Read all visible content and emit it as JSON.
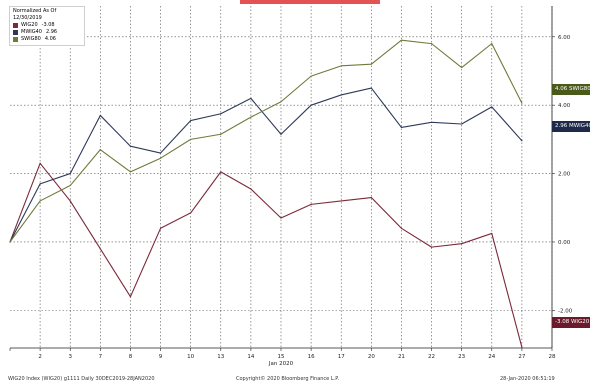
{
  "legend": {
    "title": "Normalized As Of 12/30/2019",
    "items": [
      {
        "name": "WIG20",
        "value": "-3.08",
        "color": "#7a2a3a"
      },
      {
        "name": "MWIG40",
        "value": "2.96",
        "color": "#2e3a58"
      },
      {
        "name": "SWIG80",
        "value": "4.06",
        "color": "#6e7a3a"
      }
    ]
  },
  "tags": {
    "swig80": "4.06  SWIG80",
    "mwig40": "2.96  MWIG40",
    "wig20": "-3.08 WIG20"
  },
  "footer": {
    "left": "WIG20 Index (WIG20) g1111  Daily 30DEC2019-28JAN2020",
    "center": "Copyright© 2020 Bloomberg Finance L.P.",
    "right": "28-Jan-2020 06:51:19"
  },
  "colors": {
    "wig20": "#7a2a3a",
    "mwig40": "#2e3a58",
    "swig80": "#6e7a3a",
    "grid": "#555555",
    "tag_swig80": "#4a5a1a",
    "tag_mwig40": "#1f2a4a",
    "tag_wig20": "#6a1a2a"
  },
  "chart_data": {
    "type": "line",
    "x": [
      "",
      "2",
      "3",
      "7",
      "8",
      "9",
      "10",
      "13",
      "14",
      "15",
      "16",
      "17",
      "20",
      "21",
      "22",
      "23",
      "24",
      "27",
      "28"
    ],
    "x_sublabel": {
      "index": 9,
      "text": "Jan 2020"
    },
    "ylim": [
      -3.1,
      6.9
    ],
    "yticks": [
      -2.0,
      0.0,
      2.0,
      4.0,
      6.0
    ],
    "ytick_labels": [
      "-2.00",
      "0.00",
      "2.00",
      "4.00",
      "6.00"
    ],
    "grid": true,
    "legend_position": "top-left",
    "series": [
      {
        "name": "WIG20",
        "values": [
          0.0,
          2.3,
          1.2,
          -0.2,
          -1.6,
          0.4,
          0.85,
          2.05,
          1.55,
          0.7,
          1.1,
          1.2,
          1.3,
          0.4,
          -0.15,
          -0.05,
          0.25,
          -3.08,
          null
        ]
      },
      {
        "name": "MWIG40",
        "values": [
          0.0,
          1.7,
          2.0,
          3.7,
          2.8,
          2.6,
          3.55,
          3.75,
          4.2,
          3.15,
          4.0,
          4.3,
          4.5,
          3.35,
          3.5,
          3.45,
          3.95,
          2.96,
          null
        ]
      },
      {
        "name": "SWIG80",
        "values": [
          0.0,
          1.2,
          1.65,
          2.7,
          2.05,
          2.45,
          3.0,
          3.15,
          3.65,
          4.1,
          4.85,
          5.15,
          5.2,
          5.9,
          5.8,
          5.1,
          5.8,
          4.06,
          null
        ]
      }
    ]
  }
}
